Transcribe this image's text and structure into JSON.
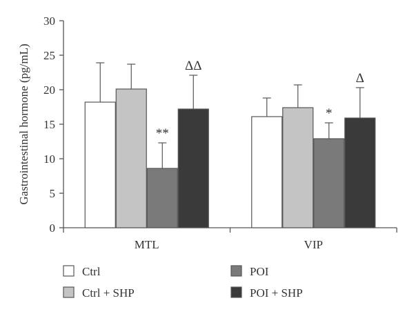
{
  "chart_data": {
    "type": "bar",
    "ylabel": "Gastrointestinal hormone (pg/mL)",
    "ylim": [
      0,
      30
    ],
    "yticks": [
      0,
      5,
      10,
      15,
      20,
      25,
      30
    ],
    "categories": [
      "MTL",
      "VIP"
    ],
    "series": [
      {
        "name": "Ctrl",
        "color": "#ffffff",
        "values": [
          18.2,
          16.1
        ],
        "errors": [
          5.7,
          2.7
        ]
      },
      {
        "name": "Ctrl + SHP",
        "color": "#c4c4c4",
        "values": [
          20.1,
          17.4
        ],
        "errors": [
          3.6,
          3.3
        ]
      },
      {
        "name": "POI",
        "color": "#7a7a7a",
        "values": [
          8.6,
          12.9
        ],
        "errors": [
          3.7,
          2.3
        ]
      },
      {
        "name": "POI + SHP",
        "color": "#3a3a3a",
        "values": [
          17.2,
          15.9
        ],
        "errors": [
          4.9,
          4.4
        ]
      }
    ],
    "annotations": [
      {
        "category": "MTL",
        "series": "POI",
        "text": "**"
      },
      {
        "category": "MTL",
        "series": "POI + SHP",
        "text": "ΔΔ"
      },
      {
        "category": "VIP",
        "series": "POI",
        "text": "*"
      },
      {
        "category": "VIP",
        "series": "POI + SHP",
        "text": "Δ"
      }
    ],
    "legend": [
      "Ctrl",
      "Ctrl + SHP",
      "POI",
      "POI + SHP"
    ],
    "legend_position": "bottom",
    "grid": false
  }
}
